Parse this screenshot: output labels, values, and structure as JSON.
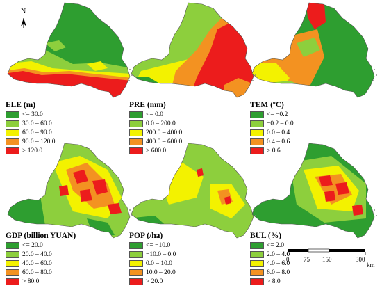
{
  "colors": {
    "c1": "#2e9e30",
    "c2": "#8dcf3d",
    "c3": "#f3f200",
    "c4": "#f39221",
    "c5": "#ec1c1c",
    "outline": "#555555",
    "islands": "#8a8a8a"
  },
  "north_label": "N",
  "panels": [
    {
      "id": "ele",
      "title": "ELE (m)",
      "legend": [
        "<= 30.0",
        "30.0 – 60.0",
        "60.0 – 90.0",
        "90.0 – 120.0",
        "> 120.0"
      ]
    },
    {
      "id": "pre",
      "title": "PRE (mm)",
      "legend": [
        "<= 0.0",
        "0.0 – 200.0",
        "200.0 – 400.0",
        "400.0 – 600.0",
        "> 600.0"
      ]
    },
    {
      "id": "tem",
      "title": "TEM (ºC)",
      "legend": [
        "<= −0.2",
        "−0.2 – 0.0",
        "0.0 – 0.4",
        "0.4 – 0.6",
        "> 0.6"
      ]
    },
    {
      "id": "gdp",
      "title": "GDP (billion YUAN)",
      "legend": [
        "<= 20.0",
        "20.0 – 40.0",
        "40.0 – 60.0",
        "60.0 – 80.0",
        "> 80.0"
      ]
    },
    {
      "id": "pop",
      "title": "POP (/ha)",
      "legend": [
        "<= −10.0",
        "−10.0 – 0.0",
        "0.0 – 10.0",
        "10.0 – 20.0",
        "> 20.0"
      ]
    },
    {
      "id": "bul",
      "title": "BUL (%)",
      "legend": [
        "<= 2.0",
        "2.0 – 4.0",
        "4.0 – 6.0",
        "6.0 – 8.0",
        "> 8.0"
      ]
    }
  ],
  "scale_bar": {
    "ticks": [
      "0",
      "75",
      "150",
      "300"
    ],
    "unit": "km"
  }
}
